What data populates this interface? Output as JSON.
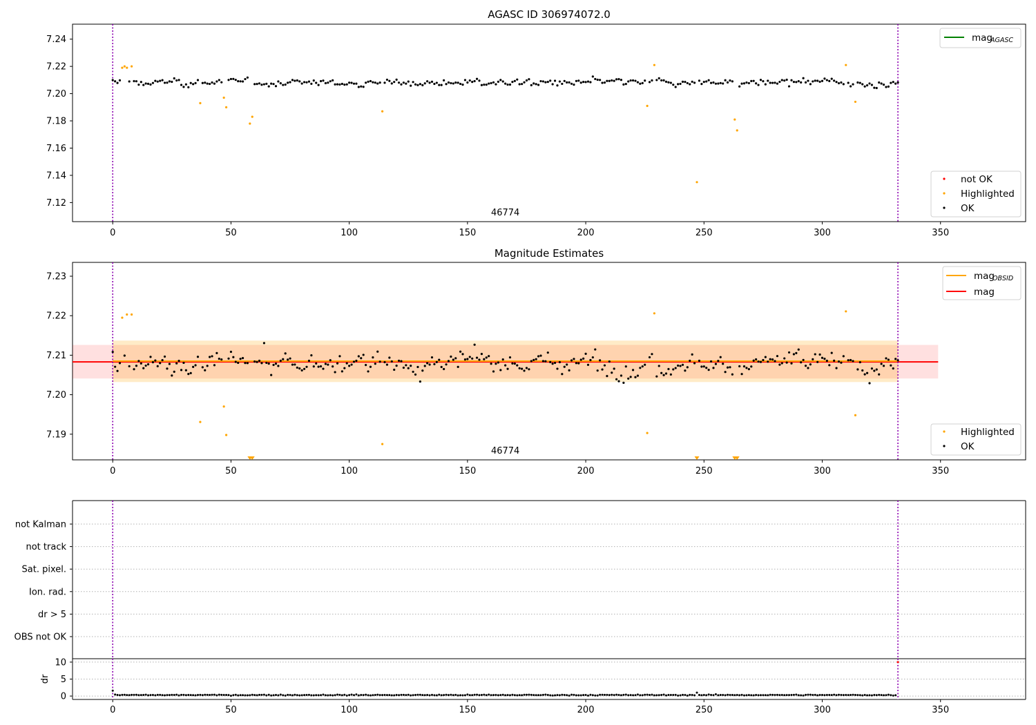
{
  "chart_data": [
    {
      "type": "scatter",
      "title": "AGASC ID 306974072.0",
      "annotation": "46774",
      "xlim": [
        -17,
        386
      ],
      "ylim": [
        7.106,
        7.251
      ],
      "xticks": [
        0,
        50,
        100,
        150,
        200,
        250,
        300,
        350
      ],
      "yticks": [
        7.12,
        7.14,
        7.16,
        7.18,
        7.2,
        7.22,
        7.24
      ],
      "obs_boundaries": [
        0,
        332
      ],
      "line_legend": [
        {
          "label": "mag",
          "subscript": "AGASC",
          "color": "#008000"
        }
      ],
      "point_legend": [
        {
          "label": "not OK",
          "color": "#ff0000"
        },
        {
          "label": "Highlighted",
          "color": "#ffa500"
        },
        {
          "label": "OK",
          "color": "#000000"
        }
      ],
      "series": [
        {
          "name": "OK",
          "color": "#000000",
          "n": 330,
          "mean": 7.208,
          "noise": 0.0035
        },
        {
          "name": "Highlighted",
          "color": "#ffa500",
          "points": [
            [
              4,
              7.219
            ],
            [
              5,
              7.22
            ],
            [
              6,
              7.219
            ],
            [
              8,
              7.22
            ],
            [
              37,
              7.193
            ],
            [
              47,
              7.197
            ],
            [
              48,
              7.19
            ],
            [
              58,
              7.178
            ],
            [
              59,
              7.183
            ],
            [
              114,
              7.187
            ],
            [
              226,
              7.191
            ],
            [
              229,
              7.221
            ],
            [
              247,
              7.135
            ],
            [
              263,
              7.181
            ],
            [
              264,
              7.173
            ],
            [
              310,
              7.221
            ],
            [
              314,
              7.194
            ]
          ]
        }
      ]
    },
    {
      "type": "scatter",
      "title": "Magnitude Estimates",
      "annotation": "46774",
      "xlim": [
        -17,
        386
      ],
      "ylim": [
        7.1835,
        7.2335
      ],
      "xticks": [
        0,
        50,
        100,
        150,
        200,
        250,
        300,
        350
      ],
      "yticks": [
        7.19,
        7.2,
        7.21,
        7.22,
        7.23
      ],
      "obs_boundaries": [
        0,
        332
      ],
      "mag": 7.2083,
      "mag_band": [
        7.2041,
        7.2126
      ],
      "mag_obsid": 7.2085,
      "mag_obsid_band": [
        7.2032,
        7.2137
      ],
      "mag_xrange": [
        -17,
        349
      ],
      "mag_obsid_xrange": [
        0,
        332
      ],
      "line_legend": [
        {
          "label": "mag",
          "subscript": "OBSID",
          "color": "#ffa500"
        },
        {
          "label": "mag",
          "subscript": "",
          "color": "#ff0000"
        }
      ],
      "point_legend": [
        {
          "label": "Highlighted",
          "color": "#ffa500"
        },
        {
          "label": "OK",
          "color": "#000000"
        }
      ],
      "series": [
        {
          "name": "OK",
          "color": "#000000",
          "n": 330,
          "mean": 7.208,
          "noise": 0.0038
        },
        {
          "name": "Highlighted",
          "color": "#ffa500",
          "points": [
            [
              4,
              7.2195
            ],
            [
              6,
              7.2203
            ],
            [
              8,
              7.2203
            ],
            [
              37,
              7.1931
            ],
            [
              47,
              7.197
            ],
            [
              48,
              7.1898
            ],
            [
              114,
              7.1875
            ],
            [
              226,
              7.1903
            ],
            [
              229,
              7.2206
            ],
            [
              310,
              7.2211
            ],
            [
              314,
              7.1948
            ]
          ]
        },
        {
          "name": "Below range",
          "color": "#ffa500",
          "points": [
            [
              58,
              7.1835
            ],
            [
              59,
              7.1835
            ],
            [
              247,
              7.1835
            ],
            [
              263,
              7.1835
            ],
            [
              264,
              7.1835
            ]
          ]
        }
      ]
    },
    {
      "type": "scatter",
      "title": "",
      "annotation": "",
      "xlim": [
        -17,
        386
      ],
      "xticks": [
        0,
        50,
        100,
        150,
        200,
        250,
        300,
        350
      ],
      "obs_boundaries": [
        0,
        332
      ],
      "flag_labels": [
        "not Kalman",
        "not track",
        "Sat. pixel.",
        "Ion. rad.",
        "dr > 5",
        "OBS not OK"
      ],
      "flags_set": []
    },
    {
      "type": "scatter",
      "title": "",
      "ylabel": "dr",
      "xlim": [
        -17,
        386
      ],
      "ylim": [
        -1,
        11
      ],
      "xticks": [
        0,
        50,
        100,
        150,
        200,
        250,
        300,
        350
      ],
      "yticks": [
        0,
        5,
        10
      ],
      "obs_boundaries": [
        0,
        332
      ],
      "series": [
        {
          "name": "dr",
          "color": "#000000",
          "n": 333,
          "typical": 0.3,
          "spikes": [
            [
              0,
              1.6
            ],
            [
              247,
              1.0
            ],
            [
              332,
              10.0
            ]
          ]
        }
      ]
    }
  ]
}
